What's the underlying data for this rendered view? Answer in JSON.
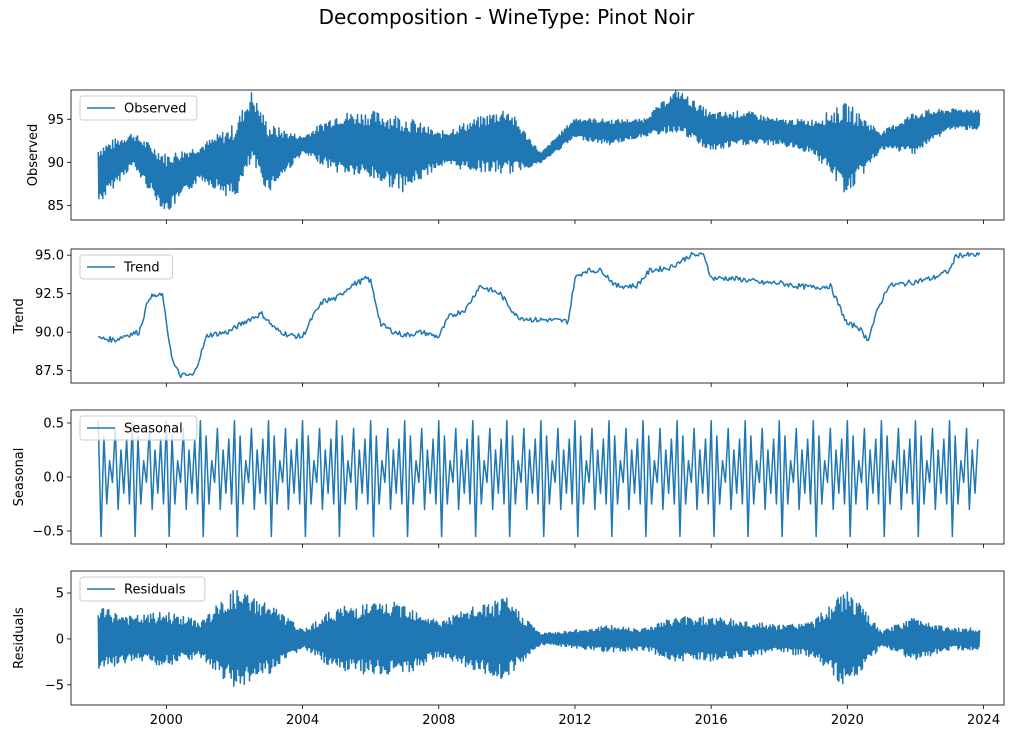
{
  "title": "Decomposition - WineType: Pinot Noir",
  "colors": {
    "line": "#1f77b4",
    "axis": "#000000",
    "legend_edge": "#cccccc"
  },
  "chart_data": [
    {
      "type": "line",
      "ylabel": "Observed",
      "legend": "Observed",
      "legend_position": "upper left",
      "grid": false,
      "xlim": [
        1997.2,
        2024.6
      ],
      "ylim": [
        83.3,
        98.4
      ],
      "yticks": [
        85,
        90,
        95
      ],
      "yticklabels": [
        "85",
        "90",
        "95"
      ],
      "x_range": [
        1998.0,
        2023.9
      ],
      "baseline": [
        [
          1998.0,
          88.5
        ],
        [
          1999.0,
          91.5
        ],
        [
          2000.0,
          87.5
        ],
        [
          2001.0,
          90.0
        ],
        [
          2002.0,
          90.0
        ],
        [
          2002.5,
          94.0
        ],
        [
          2003.0,
          90.5
        ],
        [
          2004.0,
          92.0
        ],
        [
          2005.0,
          92.3
        ],
        [
          2006.0,
          92.0
        ],
        [
          2007.0,
          91.0
        ],
        [
          2008.0,
          91.5
        ],
        [
          2009.0,
          92.0
        ],
        [
          2010.0,
          92.5
        ],
        [
          2011.0,
          90.5
        ],
        [
          2012.0,
          94.0
        ],
        [
          2013.0,
          93.5
        ],
        [
          2014.0,
          94.0
        ],
        [
          2015.0,
          96.0
        ],
        [
          2016.0,
          93.5
        ],
        [
          2017.0,
          94.0
        ],
        [
          2018.0,
          93.5
        ],
        [
          2019.0,
          93.0
        ],
        [
          2020.0,
          91.5
        ],
        [
          2021.0,
          92.5
        ],
        [
          2022.0,
          93.5
        ],
        [
          2023.0,
          95.0
        ],
        [
          2023.9,
          95.0
        ]
      ],
      "amplitude": [
        [
          1998.0,
          3.5
        ],
        [
          1999.0,
          2.0
        ],
        [
          2000.0,
          3.5
        ],
        [
          2001.0,
          2.0
        ],
        [
          2002.0,
          4.5
        ],
        [
          2003.0,
          4.0
        ],
        [
          2004.0,
          1.0
        ],
        [
          2005.0,
          3.5
        ],
        [
          2006.0,
          4.0
        ],
        [
          2007.0,
          4.5
        ],
        [
          2008.0,
          2.0
        ],
        [
          2009.0,
          3.0
        ],
        [
          2010.0,
          4.0
        ],
        [
          2011.0,
          0.6
        ],
        [
          2012.0,
          1.2
        ],
        [
          2013.0,
          1.5
        ],
        [
          2014.0,
          1.0
        ],
        [
          2015.0,
          2.5
        ],
        [
          2016.0,
          2.3
        ],
        [
          2017.0,
          2.0
        ],
        [
          2018.0,
          1.5
        ],
        [
          2019.0,
          2.0
        ],
        [
          2020.0,
          5.5
        ],
        [
          2021.0,
          1.0
        ],
        [
          2022.0,
          2.5
        ],
        [
          2023.0,
          1.2
        ],
        [
          2023.9,
          1.2
        ]
      ]
    },
    {
      "type": "line",
      "ylabel": "Trend",
      "legend": "Trend",
      "legend_position": "upper left",
      "grid": false,
      "xlim": [
        1997.2,
        2024.6
      ],
      "ylim": [
        86.7,
        95.4
      ],
      "yticks": [
        87.5,
        90.0,
        92.5,
        95.0
      ],
      "yticklabels": [
        "87.5",
        "90.0",
        "92.5",
        "95.0"
      ],
      "points": [
        [
          1998.0,
          89.6
        ],
        [
          1998.5,
          89.5
        ],
        [
          1998.8,
          89.8
        ],
        [
          1999.2,
          90.0
        ],
        [
          1999.5,
          92.3
        ],
        [
          1999.9,
          92.4
        ],
        [
          2000.0,
          90.5
        ],
        [
          2000.2,
          88.0
        ],
        [
          2000.4,
          87.2
        ],
        [
          2000.8,
          87.2
        ],
        [
          2001.0,
          88.5
        ],
        [
          2001.2,
          89.8
        ],
        [
          2001.8,
          90.0
        ],
        [
          2002.4,
          90.8
        ],
        [
          2002.8,
          91.2
        ],
        [
          2003.2,
          90.2
        ],
        [
          2003.6,
          89.8
        ],
        [
          2004.0,
          89.7
        ],
        [
          2004.3,
          91.0
        ],
        [
          2004.6,
          92.0
        ],
        [
          2005.0,
          92.2
        ],
        [
          2005.4,
          93.0
        ],
        [
          2005.9,
          93.5
        ],
        [
          2006.0,
          93.3
        ],
        [
          2006.3,
          90.5
        ],
        [
          2006.7,
          90.0
        ],
        [
          2007.0,
          89.8
        ],
        [
          2007.5,
          90.0
        ],
        [
          2008.0,
          89.7
        ],
        [
          2008.3,
          91.0
        ],
        [
          2008.8,
          91.5
        ],
        [
          2009.2,
          93.0
        ],
        [
          2009.8,
          92.5
        ],
        [
          2010.3,
          91.0
        ],
        [
          2010.8,
          90.8
        ],
        [
          2011.2,
          90.8
        ],
        [
          2011.8,
          90.7
        ],
        [
          2012.0,
          93.5
        ],
        [
          2012.3,
          94.0
        ],
        [
          2012.8,
          94.0
        ],
        [
          2013.2,
          93.0
        ],
        [
          2013.8,
          93.0
        ],
        [
          2014.2,
          94.0
        ],
        [
          2014.8,
          94.2
        ],
        [
          2015.4,
          95.0
        ],
        [
          2015.8,
          95.0
        ],
        [
          2016.0,
          93.5
        ],
        [
          2016.5,
          93.5
        ],
        [
          2017.0,
          93.4
        ],
        [
          2017.5,
          93.2
        ],
        [
          2018.0,
          93.2
        ],
        [
          2018.5,
          93.0
        ],
        [
          2019.0,
          92.9
        ],
        [
          2019.5,
          93.0
        ],
        [
          2020.0,
          90.5
        ],
        [
          2020.3,
          90.4
        ],
        [
          2020.6,
          89.5
        ],
        [
          2020.9,
          91.5
        ],
        [
          2021.2,
          93.0
        ],
        [
          2021.8,
          93.2
        ],
        [
          2022.5,
          93.5
        ],
        [
          2023.0,
          94.0
        ],
        [
          2023.2,
          95.0
        ],
        [
          2023.6,
          95.0
        ],
        [
          2023.9,
          95.0
        ]
      ]
    },
    {
      "type": "line",
      "ylabel": "Seasonal",
      "legend": "Seasonal",
      "legend_position": "upper left",
      "grid": false,
      "xlim": [
        1997.2,
        2024.6
      ],
      "ylim": [
        -0.62,
        0.62
      ],
      "yticks": [
        -0.5,
        0.0,
        0.5
      ],
      "yticklabels": [
        "−0.5",
        "0.0",
        "0.5"
      ],
      "x_range": [
        1998.0,
        2023.9
      ],
      "monthly_pattern": [
        0.52,
        -0.55,
        0.38,
        -0.25,
        0.15,
        -0.05,
        0.45,
        -0.3,
        0.25,
        -0.15,
        0.35,
        -0.25
      ]
    },
    {
      "type": "line",
      "ylabel": "Residuals",
      "legend": "Residuals",
      "legend_position": "upper left",
      "grid": false,
      "xlim": [
        1997.2,
        2024.6
      ],
      "ylim": [
        -7.2,
        7.4
      ],
      "yticks": [
        -5,
        0,
        5
      ],
      "yticklabels": [
        "−5",
        "0",
        "5"
      ],
      "xticks": [
        2000,
        2004,
        2008,
        2012,
        2016,
        2020,
        2024
      ],
      "xticklabels": [
        "2000",
        "2004",
        "2008",
        "2012",
        "2016",
        "2020",
        "2024"
      ],
      "x_range": [
        1998.0,
        2023.9
      ],
      "amplitude": [
        [
          1998.0,
          3.5
        ],
        [
          1999.0,
          2.5
        ],
        [
          2000.0,
          3.0
        ],
        [
          2001.0,
          2.0
        ],
        [
          2002.0,
          5.5
        ],
        [
          2003.0,
          4.0
        ],
        [
          2004.0,
          1.0
        ],
        [
          2005.0,
          3.5
        ],
        [
          2006.0,
          4.0
        ],
        [
          2007.0,
          4.0
        ],
        [
          2008.0,
          2.0
        ],
        [
          2009.0,
          3.5
        ],
        [
          2010.0,
          4.5
        ],
        [
          2011.0,
          0.6
        ],
        [
          2012.0,
          1.0
        ],
        [
          2013.0,
          1.5
        ],
        [
          2014.0,
          1.2
        ],
        [
          2015.0,
          2.5
        ],
        [
          2016.0,
          2.5
        ],
        [
          2017.0,
          2.0
        ],
        [
          2018.0,
          1.5
        ],
        [
          2019.0,
          2.0
        ],
        [
          2020.0,
          5.5
        ],
        [
          2021.0,
          0.8
        ],
        [
          2022.0,
          2.5
        ],
        [
          2023.0,
          1.2
        ],
        [
          2023.9,
          1.2
        ]
      ]
    }
  ]
}
